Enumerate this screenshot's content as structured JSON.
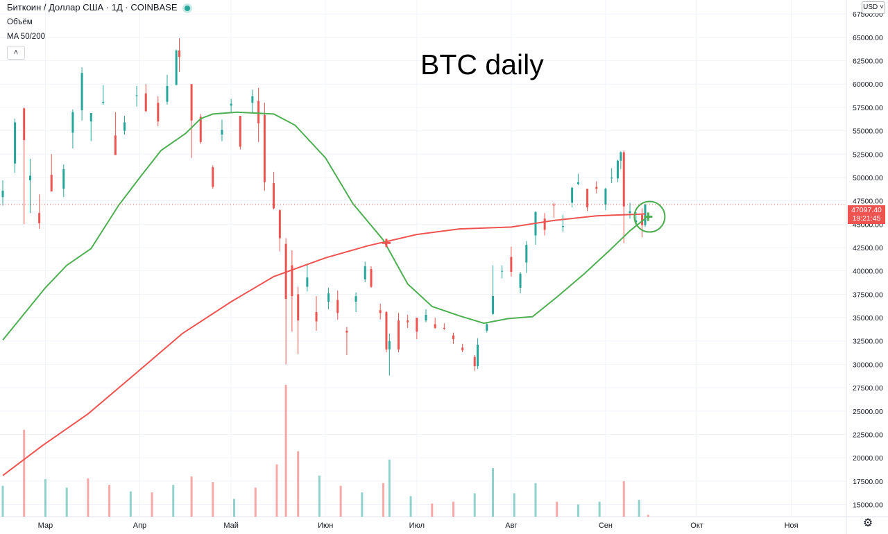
{
  "header": {
    "symbol": "Биткоин / Доллар США · 1Д · COINBASE",
    "volume_label": "Объём",
    "ma_label": "MA 50/200",
    "collapse_icon": "chevron-up-icon",
    "currency": "USD"
  },
  "price_label": {
    "price": "47097.40",
    "countdown": "19:21:45"
  },
  "colors": {
    "up": "#26a69a",
    "down": "#ef5350",
    "ma50": "#4caf50",
    "ma200": "#ef5350",
    "grid": "#f0f3fa"
  },
  "chart_data": {
    "type": "candlestick",
    "title": "BTC daily",
    "y_axis": {
      "ticks": [
        "15000.00",
        "17500.00",
        "20000.00",
        "22500.00",
        "25000.00",
        "27500.00",
        "30000.00",
        "32500.00",
        "35000.00",
        "37500.00",
        "40000.00",
        "42500.00",
        "45000.00",
        "47500.00",
        "50000.00",
        "52500.00",
        "55000.00",
        "57500.00",
        "60000.00",
        "62500.00",
        "65000.00",
        "67500.00"
      ],
      "range": [
        13700,
        69000
      ]
    },
    "x_axis": {
      "labels": [
        "Мар",
        "Апр",
        "Май",
        "Июн",
        "Июл",
        "Авг",
        "Сен",
        "Окт",
        "Ноя"
      ],
      "range": [
        "2021-02-15",
        "2021-11-20"
      ]
    },
    "candles": [
      {
        "date": "2021-02-15",
        "o": 47900,
        "h": 49700,
        "l": 47000,
        "c": 48600
      },
      {
        "date": "2021-02-19",
        "o": 51500,
        "h": 56300,
        "l": 50500,
        "c": 55900
      },
      {
        "date": "2021-02-22",
        "o": 57400,
        "h": 57500,
        "l": 45000,
        "c": 54000
      },
      {
        "date": "2021-02-24",
        "o": 49700,
        "h": 52000,
        "l": 46200,
        "c": 50200
      },
      {
        "date": "2021-02-27",
        "o": 46200,
        "h": 48200,
        "l": 44500,
        "c": 45100
      },
      {
        "date": "2021-03-03",
        "o": 50300,
        "h": 52500,
        "l": 48600,
        "c": 48500
      },
      {
        "date": "2021-03-07",
        "o": 48800,
        "h": 51400,
        "l": 47900,
        "c": 50900
      },
      {
        "date": "2021-03-10",
        "o": 54800,
        "h": 57300,
        "l": 53100,
        "c": 57000
      },
      {
        "date": "2021-03-13",
        "o": 57200,
        "h": 61800,
        "l": 56100,
        "c": 61200
      },
      {
        "date": "2021-03-16",
        "o": 56000,
        "h": 56900,
        "l": 53900,
        "c": 56900
      },
      {
        "date": "2021-03-20",
        "o": 58000,
        "h": 59900,
        "l": 57800,
        "c": 58100
      },
      {
        "date": "2021-03-24",
        "o": 54500,
        "h": 57000,
        "l": 52900,
        "c": 52400
      },
      {
        "date": "2021-03-27",
        "o": 55000,
        "h": 56600,
        "l": 54600,
        "c": 55900
      },
      {
        "date": "2021-03-31",
        "o": 58800,
        "h": 59800,
        "l": 57600,
        "c": 58800
      },
      {
        "date": "2021-04-03",
        "o": 59000,
        "h": 60000,
        "l": 57000,
        "c": 57100
      },
      {
        "date": "2021-04-07",
        "o": 58000,
        "h": 58700,
        "l": 55500,
        "c": 56000
      },
      {
        "date": "2021-04-10",
        "o": 58100,
        "h": 61000,
        "l": 57800,
        "c": 59800
      },
      {
        "date": "2021-04-13",
        "o": 59900,
        "h": 63700,
        "l": 59900,
        "c": 63600
      },
      {
        "date": "2021-04-14",
        "o": 63600,
        "h": 64900,
        "l": 61300,
        "c": 62900
      },
      {
        "date": "2021-04-18",
        "o": 60000,
        "h": 60000,
        "l": 52100,
        "c": 56100
      },
      {
        "date": "2021-04-21",
        "o": 56500,
        "h": 56800,
        "l": 53600,
        "c": 53800
      },
      {
        "date": "2021-04-25",
        "o": 51100,
        "h": 51300,
        "l": 48800,
        "c": 49000
      },
      {
        "date": "2021-04-28",
        "o": 54600,
        "h": 56200,
        "l": 53900,
        "c": 55100
      },
      {
        "date": "2021-05-01",
        "o": 57700,
        "h": 58400,
        "l": 57000,
        "c": 57900
      },
      {
        "date": "2021-05-04",
        "o": 56600,
        "h": 56600,
        "l": 53000,
        "c": 53300
      },
      {
        "date": "2021-05-08",
        "o": 58000,
        "h": 59400,
        "l": 56900,
        "c": 58700
      },
      {
        "date": "2021-05-10",
        "o": 58200,
        "h": 59600,
        "l": 53800,
        "c": 55800
      },
      {
        "date": "2021-05-12",
        "o": 56700,
        "h": 58000,
        "l": 48600,
        "c": 49500
      },
      {
        "date": "2021-05-15",
        "o": 49400,
        "h": 50600,
        "l": 46600,
        "c": 46700
      },
      {
        "date": "2021-05-17",
        "o": 46500,
        "h": 46600,
        "l": 42100,
        "c": 43500
      },
      {
        "date": "2021-05-19",
        "o": 42900,
        "h": 43500,
        "l": 30000,
        "c": 37000
      },
      {
        "date": "2021-05-21",
        "o": 40600,
        "h": 42200,
        "l": 33500,
        "c": 37300
      },
      {
        "date": "2021-05-23",
        "o": 37500,
        "h": 38300,
        "l": 31100,
        "c": 34700
      },
      {
        "date": "2021-05-26",
        "o": 38300,
        "h": 40800,
        "l": 37800,
        "c": 39300
      },
      {
        "date": "2021-05-29",
        "o": 35600,
        "h": 37300,
        "l": 33600,
        "c": 34600
      },
      {
        "date": "2021-06-02",
        "o": 36700,
        "h": 38200,
        "l": 35900,
        "c": 37600
      },
      {
        "date": "2021-06-05",
        "o": 36900,
        "h": 37900,
        "l": 34800,
        "c": 35500
      },
      {
        "date": "2021-06-08",
        "o": 33600,
        "h": 34000,
        "l": 31000,
        "c": 33400
      },
      {
        "date": "2021-06-11",
        "o": 36700,
        "h": 37700,
        "l": 35600,
        "c": 37300
      },
      {
        "date": "2021-06-14",
        "o": 39100,
        "h": 41000,
        "l": 38800,
        "c": 40500
      },
      {
        "date": "2021-06-16",
        "o": 40200,
        "h": 40500,
        "l": 38200,
        "c": 38300
      },
      {
        "date": "2021-06-19",
        "o": 35800,
        "h": 36500,
        "l": 34800,
        "c": 35500
      },
      {
        "date": "2021-06-21",
        "o": 35600,
        "h": 35700,
        "l": 31300,
        "c": 31600
      },
      {
        "date": "2021-06-22",
        "o": 31600,
        "h": 33300,
        "l": 28800,
        "c": 32500
      },
      {
        "date": "2021-06-25",
        "o": 34700,
        "h": 35500,
        "l": 31300,
        "c": 31600
      },
      {
        "date": "2021-06-28",
        "o": 34700,
        "h": 35300,
        "l": 33900,
        "c": 34500
      },
      {
        "date": "2021-07-01",
        "o": 35000,
        "h": 35000,
        "l": 32700,
        "c": 33500
      },
      {
        "date": "2021-07-04",
        "o": 34700,
        "h": 35900,
        "l": 34500,
        "c": 35300
      },
      {
        "date": "2021-07-07",
        "o": 34300,
        "h": 35000,
        "l": 33800,
        "c": 33900
      },
      {
        "date": "2021-07-10",
        "o": 33900,
        "h": 34400,
        "l": 33700,
        "c": 33800
      },
      {
        "date": "2021-07-13",
        "o": 33100,
        "h": 33400,
        "l": 32200,
        "c": 32700
      },
      {
        "date": "2021-07-16",
        "o": 31800,
        "h": 32200,
        "l": 31300,
        "c": 31500
      },
      {
        "date": "2021-07-20",
        "o": 30800,
        "h": 31000,
        "l": 29300,
        "c": 29800
      },
      {
        "date": "2021-07-21",
        "o": 29800,
        "h": 32800,
        "l": 29500,
        "c": 32100
      },
      {
        "date": "2021-07-24",
        "o": 33600,
        "h": 34500,
        "l": 33400,
        "c": 34300
      },
      {
        "date": "2021-07-26",
        "o": 35400,
        "h": 40600,
        "l": 35300,
        "c": 37300
      },
      {
        "date": "2021-07-29",
        "o": 40000,
        "h": 40600,
        "l": 39200,
        "c": 40000
      },
      {
        "date": "2021-08-01",
        "o": 41500,
        "h": 42600,
        "l": 39400,
        "c": 39900
      },
      {
        "date": "2021-08-04",
        "o": 38200,
        "h": 39900,
        "l": 37600,
        "c": 39700
      },
      {
        "date": "2021-08-06",
        "o": 40900,
        "h": 43200,
        "l": 39800,
        "c": 42800
      },
      {
        "date": "2021-08-09",
        "o": 43800,
        "h": 46400,
        "l": 42800,
        "c": 46300
      },
      {
        "date": "2021-08-12",
        "o": 45600,
        "h": 46200,
        "l": 43800,
        "c": 44400
      },
      {
        "date": "2021-08-15",
        "o": 47100,
        "h": 47300,
        "l": 45700,
        "c": 47000
      },
      {
        "date": "2021-08-18",
        "o": 44700,
        "h": 46000,
        "l": 44200,
        "c": 44800
      },
      {
        "date": "2021-08-21",
        "o": 47300,
        "h": 49000,
        "l": 46800,
        "c": 48900
      },
      {
        "date": "2021-08-23",
        "o": 49300,
        "h": 50400,
        "l": 49200,
        "c": 49500
      },
      {
        "date": "2021-08-26",
        "o": 48800,
        "h": 48800,
        "l": 46400,
        "c": 46800
      },
      {
        "date": "2021-08-29",
        "o": 49000,
        "h": 49600,
        "l": 48300,
        "c": 48800
      },
      {
        "date": "2021-09-01",
        "o": 47100,
        "h": 48900,
        "l": 46500,
        "c": 48800
      },
      {
        "date": "2021-09-03",
        "o": 49900,
        "h": 51000,
        "l": 49400,
        "c": 50000
      },
      {
        "date": "2021-09-05",
        "o": 49900,
        "h": 51900,
        "l": 49500,
        "c": 51800
      },
      {
        "date": "2021-09-06",
        "o": 51800,
        "h": 52800,
        "l": 50900,
        "c": 52700
      },
      {
        "date": "2021-09-07",
        "o": 52700,
        "h": 52900,
        "l": 43000,
        "c": 46900
      },
      {
        "date": "2021-09-09",
        "o": 46200,
        "h": 47300,
        "l": 45600,
        "c": 46400
      },
      {
        "date": "2021-09-11",
        "o": 45200,
        "h": 46300,
        "l": 44900,
        "c": 45400
      },
      {
        "date": "2021-09-13",
        "o": 46000,
        "h": 46700,
        "l": 43600,
        "c": 44900
      },
      {
        "date": "2021-09-14",
        "o": 44900,
        "h": 47200,
        "l": 44700,
        "c": 47100
      }
    ],
    "ma50": [
      {
        "date": "2021-02-15",
        "v": 32600
      },
      {
        "date": "2021-03-01",
        "v": 38200
      },
      {
        "date": "2021-03-08",
        "v": 40600
      },
      {
        "date": "2021-03-16",
        "v": 42400
      },
      {
        "date": "2021-03-25",
        "v": 47000
      },
      {
        "date": "2021-04-01",
        "v": 50000
      },
      {
        "date": "2021-04-08",
        "v": 52900
      },
      {
        "date": "2021-04-16",
        "v": 54700
      },
      {
        "date": "2021-04-21",
        "v": 56300
      },
      {
        "date": "2021-04-25",
        "v": 56800
      },
      {
        "date": "2021-05-03",
        "v": 57000
      },
      {
        "date": "2021-05-15",
        "v": 56800
      },
      {
        "date": "2021-05-22",
        "v": 55600
      },
      {
        "date": "2021-06-01",
        "v": 52100
      },
      {
        "date": "2021-06-10",
        "v": 47200
      },
      {
        "date": "2021-06-20",
        "v": 43300
      },
      {
        "date": "2021-06-28",
        "v": 38600
      },
      {
        "date": "2021-07-06",
        "v": 36200
      },
      {
        "date": "2021-07-15",
        "v": 35200
      },
      {
        "date": "2021-07-23",
        "v": 34400
      },
      {
        "date": "2021-07-31",
        "v": 34900
      },
      {
        "date": "2021-08-08",
        "v": 35100
      },
      {
        "date": "2021-08-16",
        "v": 37200
      },
      {
        "date": "2021-08-25",
        "v": 39700
      },
      {
        "date": "2021-09-02",
        "v": 42100
      },
      {
        "date": "2021-09-09",
        "v": 44300
      },
      {
        "date": "2021-09-14",
        "v": 45600
      }
    ],
    "ma200": [
      {
        "date": "2021-02-15",
        "v": 18100
      },
      {
        "date": "2021-02-28",
        "v": 21300
      },
      {
        "date": "2021-03-15",
        "v": 24700
      },
      {
        "date": "2021-04-01",
        "v": 29400
      },
      {
        "date": "2021-04-15",
        "v": 33300
      },
      {
        "date": "2021-05-01",
        "v": 36700
      },
      {
        "date": "2021-05-15",
        "v": 39400
      },
      {
        "date": "2021-06-01",
        "v": 41400
      },
      {
        "date": "2021-06-15",
        "v": 42700
      },
      {
        "date": "2021-07-01",
        "v": 43900
      },
      {
        "date": "2021-07-15",
        "v": 44500
      },
      {
        "date": "2021-08-01",
        "v": 44700
      },
      {
        "date": "2021-08-15",
        "v": 45400
      },
      {
        "date": "2021-08-29",
        "v": 45900
      },
      {
        "date": "2021-09-14",
        "v": 46100
      }
    ],
    "markers": [
      {
        "date": "2021-06-21",
        "v": 43000,
        "kind": "death-cross"
      },
      {
        "date": "2021-09-15",
        "v": 45800,
        "kind": "golden-cross"
      }
    ],
    "volume": [
      {
        "date": "2021-02-15",
        "v": 17000,
        "up": true
      },
      {
        "date": "2021-02-22",
        "v": 23000,
        "up": false
      },
      {
        "date": "2021-03-01",
        "v": 17700,
        "up": true
      },
      {
        "date": "2021-03-08",
        "v": 16800,
        "up": true
      },
      {
        "date": "2021-03-15",
        "v": 17800,
        "up": false
      },
      {
        "date": "2021-03-22",
        "v": 17100,
        "up": false
      },
      {
        "date": "2021-03-29",
        "v": 16400,
        "up": true
      },
      {
        "date": "2021-04-05",
        "v": 16300,
        "up": false
      },
      {
        "date": "2021-04-12",
        "v": 17100,
        "up": true
      },
      {
        "date": "2021-04-18",
        "v": 18000,
        "up": false
      },
      {
        "date": "2021-04-25",
        "v": 17400,
        "up": false
      },
      {
        "date": "2021-05-02",
        "v": 15600,
        "up": true
      },
      {
        "date": "2021-05-09",
        "v": 16800,
        "up": false
      },
      {
        "date": "2021-05-16",
        "v": 19300,
        "up": false
      },
      {
        "date": "2021-05-19",
        "v": 27800,
        "up": false
      },
      {
        "date": "2021-05-23",
        "v": 20700,
        "up": false
      },
      {
        "date": "2021-05-30",
        "v": 18100,
        "up": true
      },
      {
        "date": "2021-06-06",
        "v": 17000,
        "up": false
      },
      {
        "date": "2021-06-13",
        "v": 16300,
        "up": true
      },
      {
        "date": "2021-06-20",
        "v": 17300,
        "up": false
      },
      {
        "date": "2021-06-22",
        "v": 19800,
        "up": true
      },
      {
        "date": "2021-06-29",
        "v": 15900,
        "up": true
      },
      {
        "date": "2021-07-06",
        "v": 15100,
        "up": false
      },
      {
        "date": "2021-07-13",
        "v": 15300,
        "up": false
      },
      {
        "date": "2021-07-20",
        "v": 16200,
        "up": true
      },
      {
        "date": "2021-07-26",
        "v": 18900,
        "up": true
      },
      {
        "date": "2021-08-02",
        "v": 16200,
        "up": true
      },
      {
        "date": "2021-08-09",
        "v": 17300,
        "up": true
      },
      {
        "date": "2021-08-16",
        "v": 15300,
        "up": false
      },
      {
        "date": "2021-08-23",
        "v": 15000,
        "up": true
      },
      {
        "date": "2021-08-30",
        "v": 15300,
        "up": true
      },
      {
        "date": "2021-09-07",
        "v": 17500,
        "up": false
      },
      {
        "date": "2021-09-12",
        "v": 15500,
        "up": true
      },
      {
        "date": "2021-09-15",
        "v": 13900,
        "up": false
      }
    ]
  }
}
